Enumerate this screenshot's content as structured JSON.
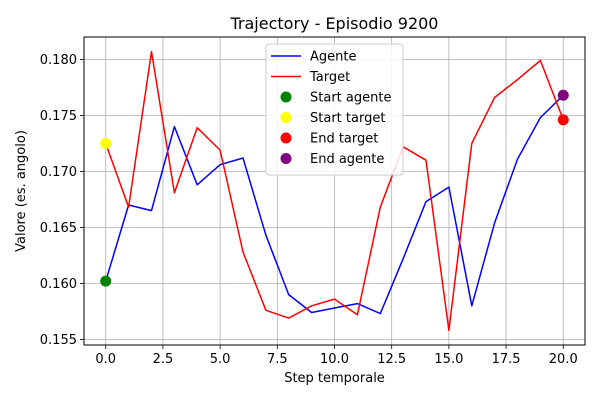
{
  "chart_data": {
    "type": "line",
    "title": "Trajectory - Episodio 9200",
    "xlabel": "Step temporale",
    "ylabel": "Valore (es. angolo)",
    "xlim": [
      -0.95,
      20.95
    ],
    "ylim": [
      0.1545,
      0.182
    ],
    "xticks": [
      0.0,
      2.5,
      5.0,
      7.5,
      10.0,
      12.5,
      15.0,
      17.5,
      20.0
    ],
    "xtick_labels": [
      "0.0",
      "2.5",
      "5.0",
      "7.5",
      "10.0",
      "12.5",
      "15.0",
      "17.5",
      "20.0"
    ],
    "yticks": [
      0.155,
      0.16,
      0.165,
      0.17,
      0.175,
      0.18
    ],
    "ytick_labels": [
      "0.155",
      "0.160",
      "0.165",
      "0.170",
      "0.175",
      "0.180"
    ],
    "grid": true,
    "legend_position": "top-center",
    "series": [
      {
        "name": "Agente",
        "color": "#0000ff",
        "kind": "line",
        "x": [
          0,
          1,
          2,
          3,
          4,
          5,
          6,
          7,
          8,
          9,
          10,
          11,
          12,
          13,
          14,
          15,
          16,
          17,
          18,
          19,
          20
        ],
        "values": [
          0.1602,
          0.167,
          0.1665,
          0.174,
          0.1688,
          0.1706,
          0.1712,
          0.1643,
          0.159,
          0.1574,
          0.1578,
          0.1582,
          0.1573,
          0.1622,
          0.1673,
          0.1686,
          0.158,
          0.1654,
          0.1711,
          0.1748,
          0.1768
        ]
      },
      {
        "name": "Target",
        "color": "#ff0000",
        "kind": "line",
        "x": [
          0,
          1,
          2,
          3,
          4,
          5,
          6,
          7,
          8,
          9,
          10,
          11,
          12,
          13,
          14,
          15,
          16,
          17,
          18,
          19,
          20
        ],
        "values": [
          0.1725,
          0.1668,
          0.1807,
          0.1681,
          0.1739,
          0.1719,
          0.1628,
          0.1576,
          0.1569,
          0.158,
          0.1586,
          0.1572,
          0.1668,
          0.1722,
          0.171,
          0.1558,
          0.1725,
          0.1766,
          0.1782,
          0.1799,
          0.1746
        ]
      },
      {
        "name": "Start agente",
        "color": "#008000",
        "kind": "point",
        "x": [
          0
        ],
        "values": [
          0.1602
        ]
      },
      {
        "name": "Start target",
        "color": "#ffff00",
        "kind": "point",
        "x": [
          0
        ],
        "values": [
          0.1725
        ]
      },
      {
        "name": "End target",
        "color": "#ff0000",
        "kind": "point",
        "x": [
          20
        ],
        "values": [
          0.1746
        ]
      },
      {
        "name": "End agente",
        "color": "#800080",
        "kind": "point",
        "x": [
          20
        ],
        "values": [
          0.1768
        ]
      }
    ]
  }
}
